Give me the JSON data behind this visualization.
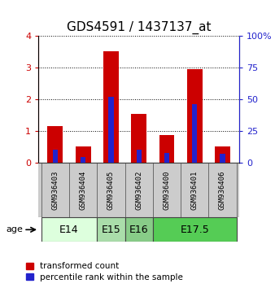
{
  "title": "GDS4591 / 1437137_at",
  "samples": [
    "GSM936403",
    "GSM936404",
    "GSM936405",
    "GSM936402",
    "GSM936400",
    "GSM936401",
    "GSM936406"
  ],
  "transformed_counts": [
    1.15,
    0.52,
    3.52,
    1.55,
    0.88,
    2.95,
    0.52
  ],
  "percentile_ranks_pct": [
    10.5,
    4.5,
    52.0,
    10.5,
    7.5,
    46.0,
    7.0
  ],
  "bar_width": 0.55,
  "blue_bar_width": 0.18,
  "red_color": "#cc0000",
  "blue_color": "#2222cc",
  "ylim_left": [
    0,
    4
  ],
  "ylim_right": [
    0,
    100
  ],
  "yticks_left": [
    0,
    1,
    2,
    3,
    4
  ],
  "yticks_right": [
    0,
    25,
    50,
    75,
    100
  ],
  "age_groups": [
    {
      "label": "E14",
      "start": 0,
      "end": 2,
      "color": "#ddffdd"
    },
    {
      "label": "E15",
      "start": 2,
      "end": 3,
      "color": "#aaddaa"
    },
    {
      "label": "E16",
      "start": 3,
      "end": 4,
      "color": "#88cc88"
    },
    {
      "label": "E17.5",
      "start": 4,
      "end": 7,
      "color": "#55cc55"
    }
  ],
  "legend_red": "transformed count",
  "legend_blue": "percentile rank within the sample",
  "left_tick_color": "#cc0000",
  "right_tick_color": "#2222cc",
  "title_fontsize": 11,
  "tick_fontsize": 8,
  "age_label_fontsize": 9,
  "gsm_fontsize": 6.5,
  "gsm_bg_color": "#cccccc",
  "border_color": "#444444"
}
